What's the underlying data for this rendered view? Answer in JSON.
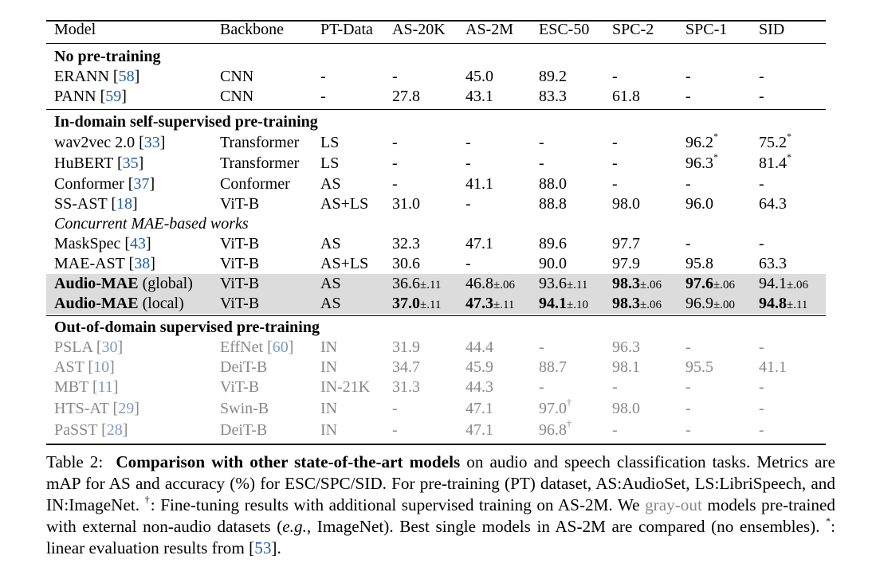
{
  "table": {
    "headers": [
      "Model",
      "Backbone",
      "PT-Data",
      "AS-20K",
      "AS-2M",
      "ESC-50",
      "SPC-2",
      "SPC-1",
      "SID"
    ],
    "sections": {
      "s1": "No pre-training",
      "s2": "In-domain self-supervised pre-training",
      "s2_sub": "Concurrent MAE-based works",
      "s3": "Out-of-domain supervised pre-training"
    },
    "rows": [
      {
        "model": "ERANN",
        "ref": "58",
        "backbone": "CNN",
        "backbone_ref": "",
        "pt": "-",
        "as20k": "-",
        "as2m": "45.0",
        "esc": "89.2",
        "spc2": "-",
        "spc1": "-",
        "sid": "-"
      },
      {
        "model": "PANN",
        "ref": "59",
        "backbone": "CNN",
        "backbone_ref": "",
        "pt": "-",
        "as20k": "27.8",
        "as2m": "43.1",
        "esc": "83.3",
        "spc2": "61.8",
        "spc1": "-",
        "sid": "-"
      },
      {
        "model": "wav2vec 2.0",
        "ref": "33",
        "backbone": "Transformer",
        "backbone_ref": "",
        "pt": "LS",
        "as20k": "-",
        "as2m": "-",
        "esc": "-",
        "spc2": "-",
        "spc1": "96.2",
        "sid": "75.2"
      },
      {
        "model": "HuBERT",
        "ref": "35",
        "backbone": "Transformer",
        "backbone_ref": "",
        "pt": "LS",
        "as20k": "-",
        "as2m": "-",
        "esc": "-",
        "spc2": "-",
        "spc1": "96.3",
        "sid": "81.4"
      },
      {
        "model": "Conformer",
        "ref": "37",
        "backbone": "Conformer",
        "backbone_ref": "",
        "pt": "AS",
        "as20k": "-",
        "as2m": "41.1",
        "esc": "88.0",
        "spc2": "-",
        "spc1": "-",
        "sid": "-"
      },
      {
        "model": "SS-AST",
        "ref": "18",
        "backbone": "ViT-B",
        "backbone_ref": "",
        "pt": "AS+LS",
        "as20k": "31.0",
        "as2m": "-",
        "esc": "88.8",
        "spc2": "98.0",
        "spc1": "96.0",
        "sid": "64.3"
      },
      {
        "model": "MaskSpec",
        "ref": "43",
        "backbone": "ViT-B",
        "backbone_ref": "",
        "pt": "AS",
        "as20k": "32.3",
        "as2m": "47.1",
        "esc": "89.6",
        "spc2": "97.7",
        "spc1": "-",
        "sid": "-"
      },
      {
        "model": "MAE-AST",
        "ref": "38",
        "backbone": "ViT-B",
        "backbone_ref": "",
        "pt": "AS+LS",
        "as20k": "30.6",
        "as2m": "-",
        "esc": "90.0",
        "spc2": "97.9",
        "spc1": "95.8",
        "sid": "63.3"
      },
      {
        "model": "Audio-MAE",
        "model_suffix": "(global)",
        "backbone": "ViT-B",
        "pt": "AS",
        "as20k": "36.6",
        "as20k_pm": "±.11",
        "as2m": "46.8",
        "as2m_pm": "±.06",
        "esc": "93.6",
        "esc_pm": "±.11",
        "spc2": "98.3",
        "spc2_pm": "±.06",
        "spc1": "97.6",
        "spc1_pm": "±.06",
        "sid": "94.1",
        "sid_pm": "±.06"
      },
      {
        "model": "Audio-MAE",
        "model_suffix": "(local)",
        "backbone": "ViT-B",
        "pt": "AS",
        "as20k": "37.0",
        "as20k_pm": "±.11",
        "as2m": "47.3",
        "as2m_pm": "±.11",
        "esc": "94.1",
        "esc_pm": "±.10",
        "spc2": "98.3",
        "spc2_pm": "±.06",
        "spc1": "96.9",
        "spc1_pm": "±.00",
        "sid": "94.8",
        "sid_pm": "±.11"
      },
      {
        "model": "PSLA",
        "ref": "30",
        "backbone": "EffNet",
        "backbone_ref": "60",
        "pt": "IN",
        "as20k": "31.9",
        "as2m": "44.4",
        "esc": "-",
        "spc2": "96.3",
        "spc1": "-",
        "sid": "-"
      },
      {
        "model": "AST",
        "ref": "10",
        "backbone": "DeiT-B",
        "backbone_ref": "",
        "pt": "IN",
        "as20k": "34.7",
        "as2m": "45.9",
        "esc": "88.7",
        "spc2": "98.1",
        "spc1": "95.5",
        "sid": "41.1"
      },
      {
        "model": "MBT",
        "ref": "11",
        "backbone": "ViT-B",
        "backbone_ref": "",
        "pt": "IN-21K",
        "as20k": "31.3",
        "as2m": "44.3",
        "esc": "-",
        "spc2": "-",
        "spc1": "-",
        "sid": "-"
      },
      {
        "model": "HTS-AT",
        "ref": "29",
        "backbone": "Swin-B",
        "backbone_ref": "",
        "pt": "IN",
        "as20k": "-",
        "as2m": "47.1",
        "esc": "97.0",
        "spc2": "98.0",
        "spc1": "-",
        "sid": "-"
      },
      {
        "model": "PaSST",
        "ref": "28",
        "backbone": "DeiT-B",
        "backbone_ref": "",
        "pt": "IN",
        "as20k": "-",
        "as2m": "47.1",
        "esc": "96.8",
        "spc2": "-",
        "spc1": "-",
        "sid": "-"
      }
    ],
    "marks": {
      "star": "*",
      "dagger": "†"
    }
  },
  "caption": {
    "label": "Table 2:",
    "title": "Comparison with other state-of-the-art models",
    "t1": " on audio and speech classification tasks. Metrics are mAP for AS and accuracy (%) for ESC/SPC/SID. For pre-training (PT) dataset, AS:AudioSet, LS:LibriSpeech, and IN:ImageNet. ",
    "dagger": "†",
    "t2": ": Fine-tuning results with additional supervised training on AS-2M. We ",
    "grayout": "gray-out",
    "t3": " models pre-trained with external non-audio datasets (",
    "eg": "e.g.",
    "t4": ", ImageNet). Best single models in AS-2M are compared (no ensembles). ",
    "star": "*",
    "t5": ": linear evaluation results from [",
    "ref": "53",
    "t6": "]."
  }
}
